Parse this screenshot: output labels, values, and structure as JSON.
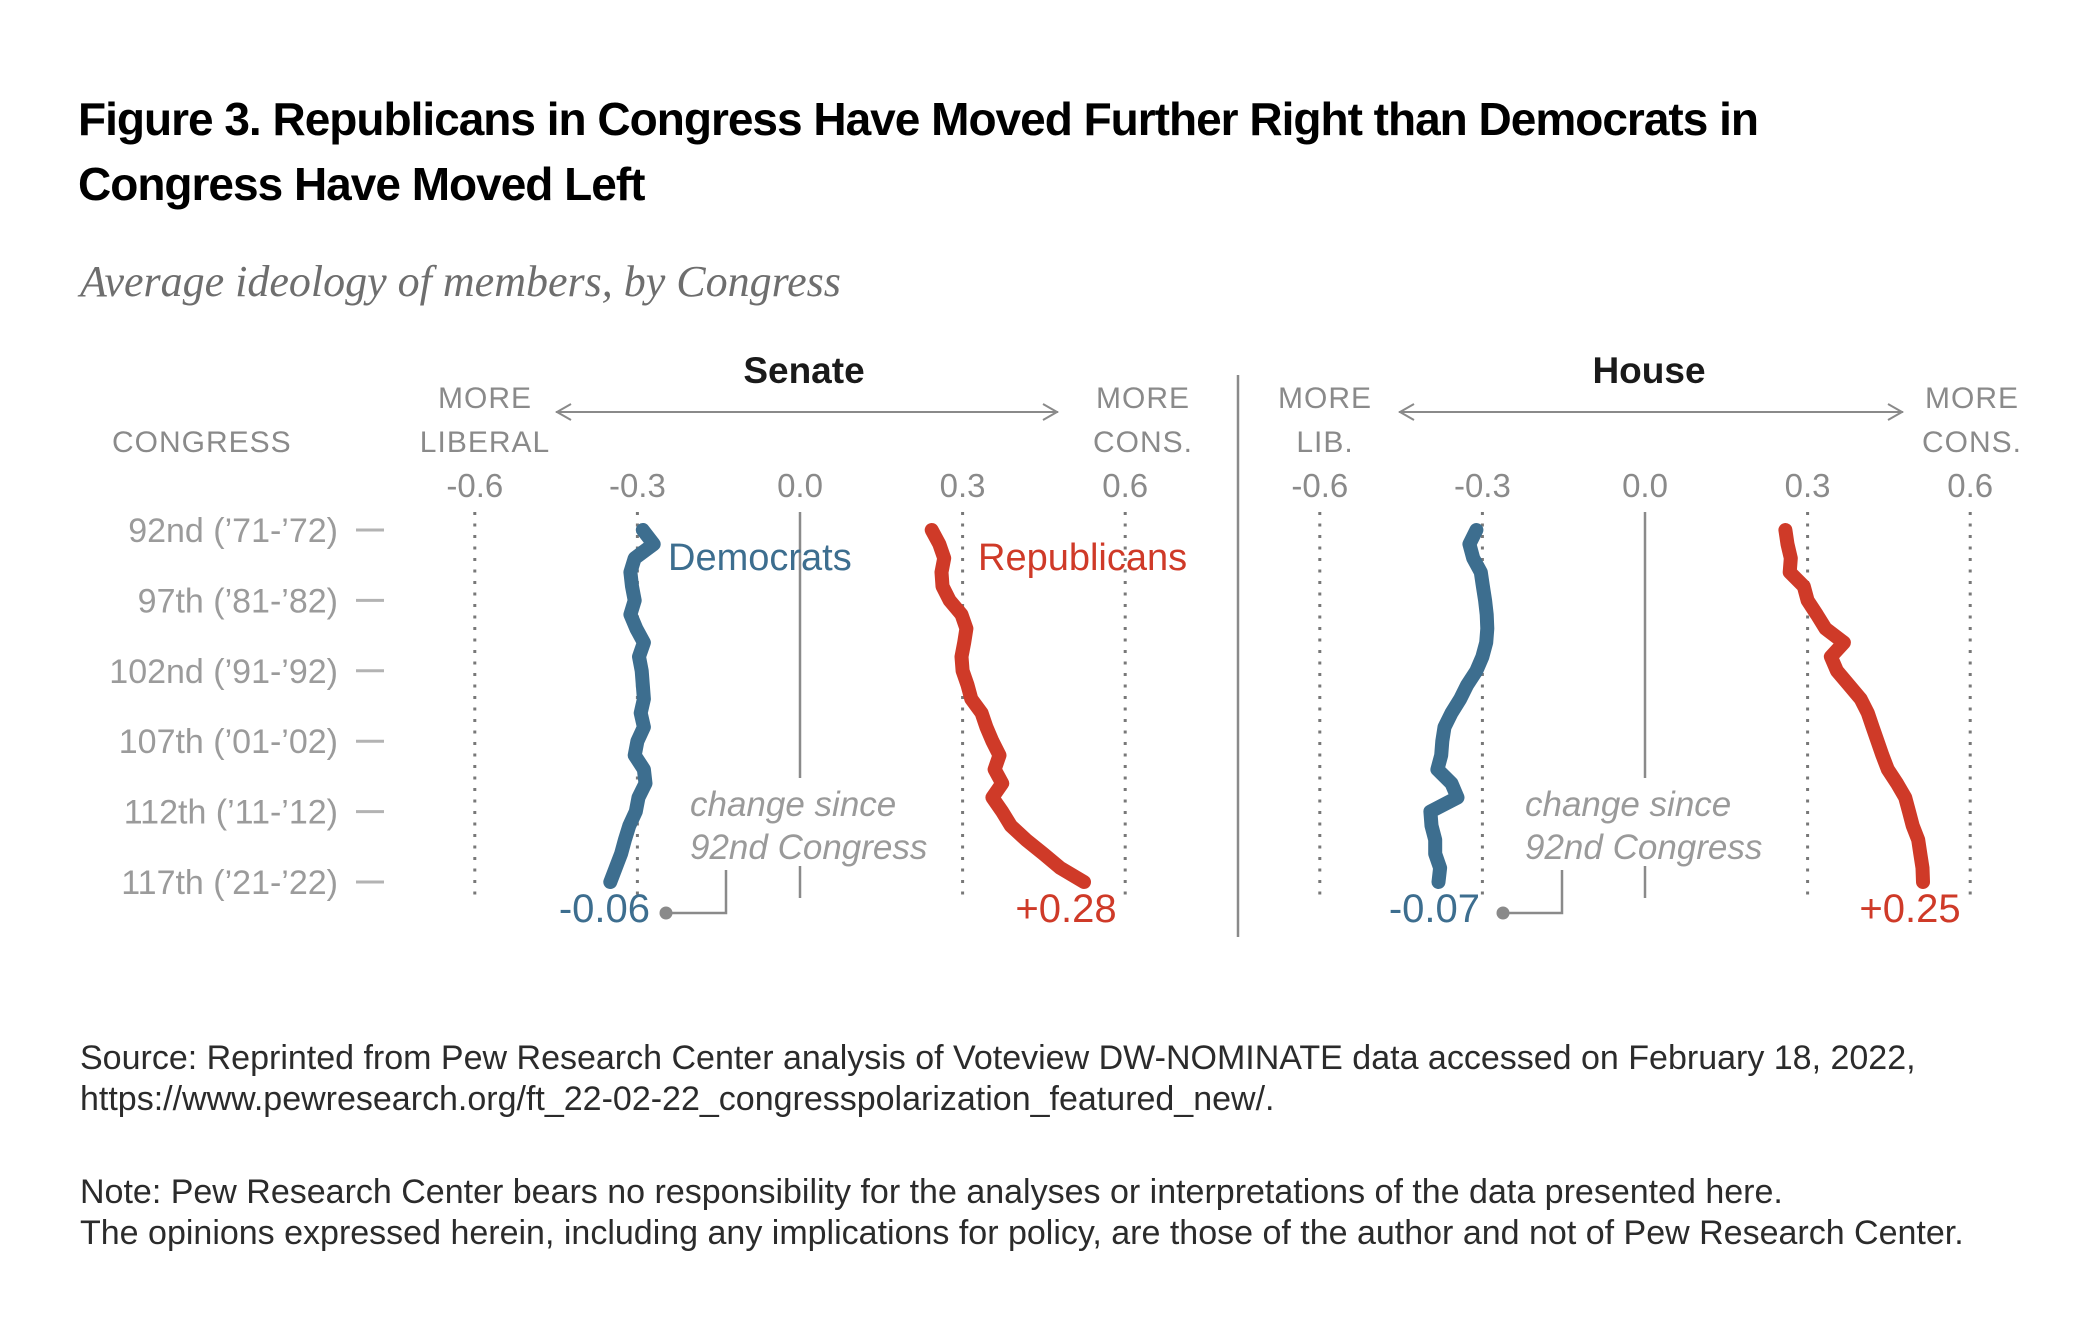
{
  "title_lines": [
    "Figure 3. Republicans in Congress Have Moved Further Right than Democrats in",
    "Congress Have Moved Left"
  ],
  "subtitle": "Average ideology of members, by Congress",
  "congress_column_label": "CONGRESS",
  "congress_row_labels": [
    "92nd (’71-’72)",
    "97th (’81-’82)",
    "102nd (’91-’92)",
    "107th (’01-’02)",
    "112th (’11-’12)",
    "117th (’21-’22)"
  ],
  "source_lines": [
    "Source: Reprinted from Pew Research Center analysis of Voteview DW-NOMINATE data accessed on February 18, 2022,",
    "https://www.pewresearch.org/ft_22-02-22_congresspolarization_featured_new/."
  ],
  "note_lines": [
    "Note: Pew Research Center bears no responsibility for the analyses or interpretations of the data presented here.",
    "The opinions expressed herein, including any implications for policy, are those of the author and not of Pew Research Center."
  ],
  "colors": {
    "democrat": "#3d6e8f",
    "republican": "#cf3a28",
    "axis_gray": "#8a8a8a",
    "congress_gray": "#9b9b9b",
    "annotation_gray": "#9a9a9a",
    "grid_dot": "#787878",
    "dash_gray": "#b3b3b3",
    "panel_title": "#1a1a1a",
    "subtitle_gray": "#6e6e6e",
    "body_text": "#2b2b2b"
  },
  "chart_data": [
    {
      "type": "line",
      "panel_title": "Senate",
      "orientation": "vertical-time-axis",
      "x_range": [
        -0.75,
        0.75
      ],
      "x_ticks": [
        -0.6,
        -0.3,
        0,
        0.3,
        0.6
      ],
      "x_tick_labels": [
        "-0.6",
        "-0.3",
        "0.0",
        "0.3",
        "0.6"
      ],
      "direction_labels": {
        "left": [
          "MORE",
          "LIBERAL"
        ],
        "right": [
          "MORE",
          "CONS."
        ]
      },
      "y_categories_labeled": [
        "92nd (’71-’72)",
        "97th (’81-’82)",
        "102nd (’91-’92)",
        "107th (’01-’02)",
        "112th (’11-’12)",
        "117th (’21-’22)"
      ],
      "congress_count": 26,
      "show_series_labels": true,
      "series": [
        {
          "name": "Democrats",
          "color": "#3d6e8f",
          "values": [
            -0.29,
            -0.27,
            -0.305,
            -0.313,
            -0.31,
            -0.305,
            -0.313,
            -0.302,
            -0.288,
            -0.297,
            -0.292,
            -0.29,
            -0.288,
            -0.294,
            -0.288,
            -0.3,
            -0.305,
            -0.288,
            -0.285,
            -0.298,
            -0.303,
            -0.315,
            -0.323,
            -0.33,
            -0.34,
            -0.35
          ]
        },
        {
          "name": "Republicans",
          "color": "#cf3a28",
          "values": [
            0.243,
            0.257,
            0.266,
            0.261,
            0.263,
            0.276,
            0.298,
            0.307,
            0.303,
            0.298,
            0.3,
            0.309,
            0.316,
            0.335,
            0.344,
            0.355,
            0.368,
            0.359,
            0.373,
            0.355,
            0.373,
            0.389,
            0.417,
            0.449,
            0.48,
            0.524
          ]
        }
      ],
      "end_labels": [
        {
          "series": "Democrats",
          "text": "-0.06"
        },
        {
          "series": "Republicans",
          "text": "+0.28"
        }
      ],
      "annotation_lines": [
        "change since",
        "92nd Congress"
      ]
    },
    {
      "type": "line",
      "panel_title": "House",
      "orientation": "vertical-time-axis",
      "x_range": [
        -0.75,
        0.75
      ],
      "x_ticks": [
        -0.6,
        -0.3,
        0,
        0.3,
        0.6
      ],
      "x_tick_labels": [
        "-0.6",
        "-0.3",
        "0.0",
        "0.3",
        "0.6"
      ],
      "direction_labels": {
        "left": [
          "MORE",
          "LIB."
        ],
        "right": [
          "MORE",
          "CONS."
        ]
      },
      "y_categories_labeled": [
        "92nd (’71-’72)",
        "97th (’81-’82)",
        "102nd (’91-’92)",
        "107th (’01-’02)",
        "112th (’11-’12)",
        "117th (’21-’22)"
      ],
      "congress_count": 26,
      "show_series_labels": false,
      "series": [
        {
          "name": "Democrats",
          "color": "#3d6e8f",
          "values": [
            -0.311,
            -0.324,
            -0.317,
            -0.303,
            -0.299,
            -0.295,
            -0.292,
            -0.291,
            -0.293,
            -0.3,
            -0.311,
            -0.328,
            -0.341,
            -0.357,
            -0.37,
            -0.374,
            -0.376,
            -0.383,
            -0.357,
            -0.346,
            -0.396,
            -0.394,
            -0.387,
            -0.387,
            -0.378,
            -0.381
          ]
        },
        {
          "name": "Republicans",
          "color": "#cf3a28",
          "values": [
            0.259,
            0.263,
            0.269,
            0.267,
            0.293,
            0.3,
            0.317,
            0.333,
            0.367,
            0.343,
            0.354,
            0.376,
            0.398,
            0.411,
            0.42,
            0.429,
            0.438,
            0.448,
            0.465,
            0.48,
            0.487,
            0.494,
            0.504,
            0.508,
            0.512,
            0.513
          ]
        }
      ],
      "end_labels": [
        {
          "series": "Democrats",
          "text": "-0.07"
        },
        {
          "series": "Republicans",
          "text": "+0.25"
        }
      ],
      "annotation_lines": [
        "change since",
        "92nd Congress"
      ]
    }
  ]
}
